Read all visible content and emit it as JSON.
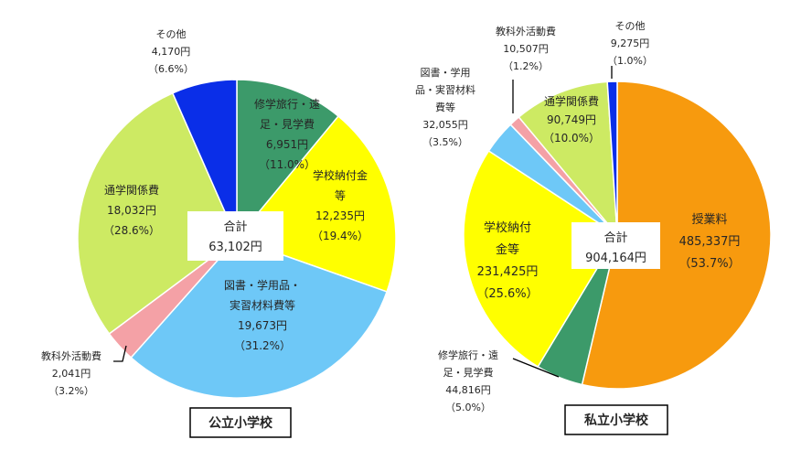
{
  "chart_data": [
    {
      "type": "pie",
      "title": "公立小学校",
      "total": {
        "label": "合計",
        "value": "63,102円"
      },
      "slices": [
        {
          "name": "修学旅行・遠足・見学費",
          "value": 6951,
          "percent": 11.0,
          "color": "#3c9a6a",
          "lines": [
            "修学旅行・遠",
            "足・見学費",
            "6,951円",
            "（11.0%）"
          ]
        },
        {
          "name": "学校納付金等",
          "value": 12235,
          "percent": 19.4,
          "color": "#ffff00",
          "lines": [
            "学校納付金",
            "等",
            "12,235円",
            "（19.4%）"
          ]
        },
        {
          "name": "図書・学用品・実習材料費等",
          "value": 19673,
          "percent": 31.2,
          "color": "#6ec8f7",
          "lines": [
            "図書・学用品・",
            "実習材料費等",
            "19,673円",
            "（31.2%）"
          ]
        },
        {
          "name": "教科外活動費",
          "value": 2041,
          "percent": 3.2,
          "color": "#f4a1a6",
          "lines": [
            "教科外活動費",
            "2,041円",
            "（3.2%）"
          ]
        },
        {
          "name": "通学関係費",
          "value": 18032,
          "percent": 28.6,
          "color": "#cdea63",
          "lines": [
            "通学関係費",
            "18,032円",
            "（28.6%）"
          ]
        },
        {
          "name": "その他",
          "value": 4170,
          "percent": 6.6,
          "color": "#0a2ee8",
          "lines": [
            "その他",
            "4,170円",
            "（6.6%）"
          ]
        }
      ]
    },
    {
      "type": "pie",
      "title": "私立小学校",
      "total": {
        "label": "合計",
        "value": "904,164円"
      },
      "slices": [
        {
          "name": "授業料",
          "value": 485337,
          "percent": 53.7,
          "color": "#f79a0e",
          "lines": [
            "授業料",
            "485,337円",
            "（53.7%）"
          ]
        },
        {
          "name": "修学旅行・遠足・見学費",
          "value": 44816,
          "percent": 5.0,
          "color": "#3c9a6a",
          "lines": [
            "修学旅行・遠",
            "足・見学費",
            "44,816円",
            "（5.0%）"
          ]
        },
        {
          "name": "学校納付金等",
          "value": 231425,
          "percent": 25.6,
          "color": "#ffff00",
          "lines": [
            "学校納付",
            "金等",
            "231,425円",
            "（25.6%）"
          ]
        },
        {
          "name": "図書・学用品・実習材料費等",
          "value": 32055,
          "percent": 3.5,
          "color": "#6ec8f7",
          "lines": [
            "図書・学用",
            "品・実習材料",
            "費等",
            "32,055円",
            "（3.5%）"
          ]
        },
        {
          "name": "教科外活動費",
          "value": 10507,
          "percent": 1.2,
          "color": "#f4a1a6",
          "lines": [
            "教科外活動費",
            "10,507円",
            "（1.2%）"
          ]
        },
        {
          "name": "通学関係費",
          "value": 90749,
          "percent": 10.0,
          "color": "#cdea63",
          "lines": [
            "通学関係費",
            "90,749円",
            "（10.0%）"
          ]
        },
        {
          "name": "その他",
          "value": 9275,
          "percent": 1.0,
          "color": "#0a2ee8",
          "lines": [
            "その他",
            "9,275円",
            "（1.0%）"
          ]
        }
      ]
    }
  ]
}
